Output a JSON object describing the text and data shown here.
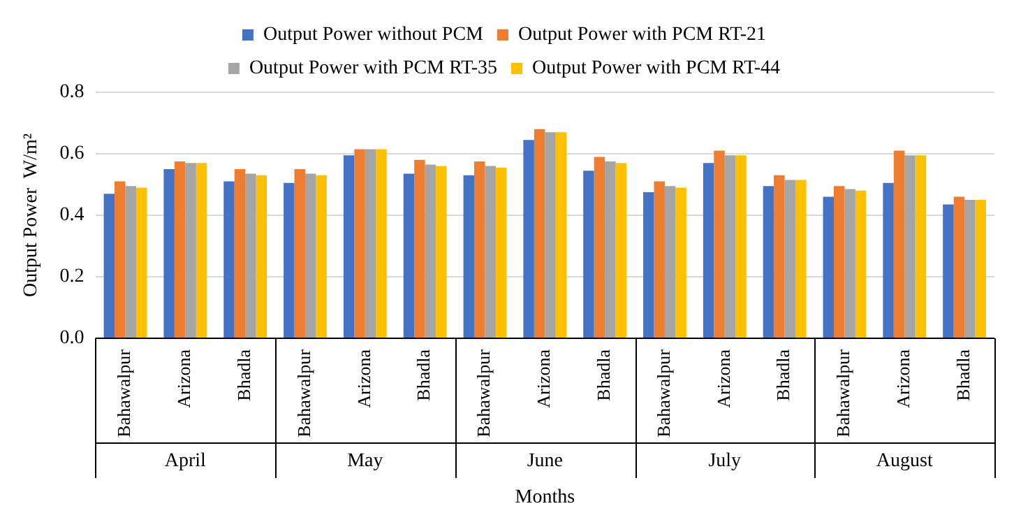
{
  "chart_data": {
    "type": "bar",
    "xlabel": "Months",
    "ylabel": "Output Power  W/m²",
    "categories": [
      "Bahawalpur",
      "Arizona",
      "Bhadla",
      "Bahawalpur",
      "Arizona",
      "Bhadla",
      "Bahawalpur",
      "Arizona",
      "Bhadla",
      "Bahawalpur",
      "Arizona",
      "Bhadla",
      "Bahawalpur",
      "Arizona",
      "Bhadla"
    ],
    "annotations": [
      "April",
      "May",
      "June",
      "July",
      "August"
    ],
    "series": [
      {
        "name": "Output Power without PCM",
        "color": "#4472c4",
        "values": [
          0.47,
          0.55,
          0.51,
          0.505,
          0.595,
          0.535,
          0.53,
          0.645,
          0.545,
          0.475,
          0.57,
          0.495,
          0.46,
          0.505,
          0.435
        ]
      },
      {
        "name": "Output Power with PCM RT-21",
        "color": "#ed7d31",
        "values": [
          0.51,
          0.575,
          0.55,
          0.55,
          0.615,
          0.58,
          0.575,
          0.68,
          0.59,
          0.51,
          0.61,
          0.53,
          0.495,
          0.61,
          0.46
        ]
      },
      {
        "name": "Output Power with PCM RT-35",
        "color": "#a5a5a5",
        "values": [
          0.495,
          0.57,
          0.535,
          0.535,
          0.615,
          0.565,
          0.56,
          0.67,
          0.575,
          0.495,
          0.595,
          0.515,
          0.485,
          0.595,
          0.45
        ]
      },
      {
        "name": "Output Power with PCM RT-44",
        "color": "#ffc000",
        "values": [
          0.49,
          0.57,
          0.53,
          0.53,
          0.615,
          0.56,
          0.555,
          0.67,
          0.57,
          0.49,
          0.595,
          0.515,
          0.48,
          0.595,
          0.45
        ]
      }
    ],
    "ylim": [
      0,
      0.8
    ],
    "yticks": [
      {
        "value": 0,
        "label": "0.0"
      },
      0.2,
      0.4,
      0.6,
      0.8
    ],
    "grid": "y",
    "legend": "top"
  }
}
